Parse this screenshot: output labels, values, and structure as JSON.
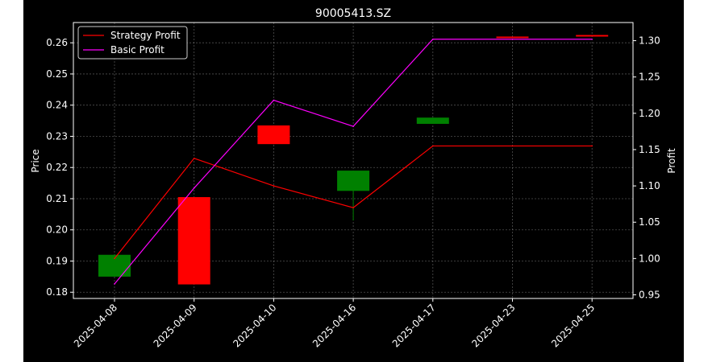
{
  "chart_data": {
    "type": "candlestick",
    "title": "90005413.SZ",
    "xlabel": "",
    "ylabel": "Price",
    "ylabel_right": "Profit",
    "categories": [
      "2025-04-08",
      "2025-04-09",
      "2025-04-10",
      "2025-04-16",
      "2025-04-17",
      "2025-04-23",
      "2025-04-25"
    ],
    "ylim": [
      0.178,
      0.2665
    ],
    "ylim_right": [
      0.945,
      1.325
    ],
    "yticks": [
      "0.18",
      "0.19",
      "0.20",
      "0.21",
      "0.22",
      "0.23",
      "0.24",
      "0.25",
      "0.26"
    ],
    "yticks_right": [
      "0.95",
      "1.00",
      "1.05",
      "1.10",
      "1.15",
      "1.20",
      "1.25",
      "1.30"
    ],
    "grid": true,
    "legend_position": "top-left",
    "candles": [
      {
        "open": 0.192,
        "high": 0.192,
        "low": 0.185,
        "close": 0.185,
        "color": "#008000"
      },
      {
        "open": 0.2105,
        "high": 0.2105,
        "low": 0.1825,
        "close": 0.1825,
        "color": "#ff0000"
      },
      {
        "open": 0.2335,
        "high": 0.2335,
        "low": 0.2275,
        "close": 0.2275,
        "color": "#ff0000"
      },
      {
        "open": 0.219,
        "high": 0.219,
        "low": 0.203,
        "close": 0.2125,
        "color": "#008000"
      },
      {
        "open": 0.236,
        "high": 0.236,
        "low": 0.234,
        "close": 0.234,
        "color": "#008000"
      },
      {
        "open": 0.262,
        "high": 0.262,
        "low": 0.2615,
        "close": 0.2615,
        "color": "#ff0000"
      },
      {
        "open": 0.2625,
        "high": 0.2625,
        "low": 0.262,
        "close": 0.262,
        "color": "#ff0000"
      }
    ],
    "series": [
      {
        "name": "Strategy Profit",
        "axis": "right",
        "color": "#ff0000",
        "values": [
          1.0,
          1.138,
          1.1,
          1.07,
          1.155,
          1.155,
          1.155
        ]
      },
      {
        "name": "Basic Profit",
        "axis": "right",
        "color": "#ff00ff",
        "values": [
          0.965,
          1.097,
          1.218,
          1.182,
          1.302,
          1.302,
          1.302
        ]
      }
    ]
  }
}
